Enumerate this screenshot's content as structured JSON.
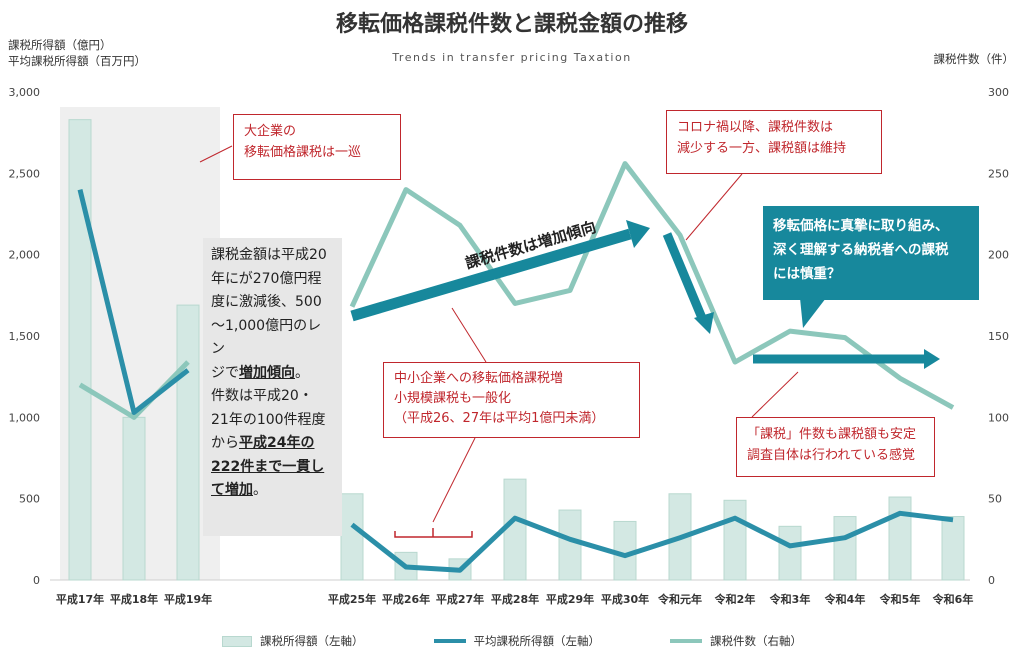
{
  "title": "移転価格課税件数と課税金額の推移",
  "subtitle": "Trends in transfer pricing Taxation",
  "left_axis_label_lines": [
    "課税所得額（億円）",
    "平均課税所得額（百万円）"
  ],
  "right_axis_label": "課税件数（件）",
  "arrow_label": "課税件数は増加傾向",
  "annotations": {
    "large_corp": [
      "大企業の",
      "移転価格課税は一巡"
    ],
    "corona": [
      "コロナ禍以降、課税件数は",
      "減少する一方、課税額は維持"
    ],
    "sme": [
      "中小企業への移転価格課税増",
      "小規模課税も一般化",
      "（平成26、27年は平均1億円未満）"
    ],
    "stable": [
      "「課税」件数も課税額も安定",
      "調査自体は行われている感覚"
    ],
    "teal": [
      "移転価格に真摯に取り組み、",
      "深く理解する納税者への課税",
      "には慎重？"
    ],
    "gray": {
      "line1": "課税金額は平成20",
      "line2": "年にが270億円程",
      "line3": "度に激減後、500",
      "line4": "～1,000億円のレン",
      "line5_pre": "ジで",
      "line5_bold": "増加傾向",
      "line5_post": "。",
      "line6": "件数は平成20・",
      "line7": "21年の100件程度",
      "line8_pre": "から",
      "line8_bold": "平成24年の",
      "line9_bold": "222件まで一貫し",
      "line10_bold": "て増加",
      "line10_post": "。"
    }
  },
  "legend": [
    "課税所得額（左軸）",
    "平均課税所得額（左軸）",
    "課税件数（右軸）"
  ],
  "colors": {
    "bar": "#d3e8e3",
    "bar_edge": "#b8d8cf",
    "avg_line": "#2b8fa8",
    "count_line": "#8cc7bb",
    "arrow": "#17889c",
    "red": "#c0272d",
    "gray_bg": "#e7e7e7",
    "teal_box": "#17889c"
  },
  "chart_data": {
    "type": "bar",
    "categories": [
      "平成17年",
      "平成18年",
      "平成19年",
      "平成25年",
      "平成26年",
      "平成27年",
      "平成28年",
      "平成29年",
      "平成30年",
      "令和元年",
      "令和2年",
      "令和3年",
      "令和4年",
      "令和5年",
      "令和6年"
    ],
    "series": [
      {
        "name": "課税所得額（左軸）",
        "type": "bar",
        "axis": "left",
        "values": [
          2830,
          1000,
          1690,
          530,
          170,
          130,
          620,
          430,
          360,
          530,
          490,
          330,
          390,
          510,
          390
        ]
      },
      {
        "name": "平均課税所得額（左軸）",
        "type": "line",
        "axis": "left",
        "values": [
          2400,
          1030,
          1290,
          340,
          80,
          60,
          380,
          250,
          150,
          260,
          380,
          210,
          260,
          410,
          370
        ]
      },
      {
        "name": "課税件数（右軸）",
        "type": "line",
        "axis": "right",
        "values": [
          120,
          100,
          134,
          168,
          240,
          218,
          170,
          178,
          256,
          212,
          134,
          153,
          149,
          124,
          106
        ]
      }
    ],
    "left_axis": {
      "ylim": [
        0,
        3000
      ],
      "ticks": [
        "0",
        "500",
        "1,000",
        "1,500",
        "2,000",
        "2,500",
        "3,000"
      ]
    },
    "right_axis": {
      "ylim": [
        0,
        300
      ],
      "ticks": [
        "0",
        "50",
        "100",
        "150",
        "200",
        "250",
        "300"
      ]
    },
    "grid": false,
    "legend_position": "bottom"
  }
}
